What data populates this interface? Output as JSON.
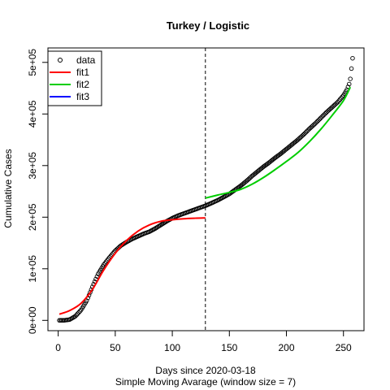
{
  "chart_data": {
    "type": "scatter",
    "title": "Turkey / Logistic",
    "xlabel": "Days since 2020-03-18",
    "xlabel_sub": "Simple Moving Avarage (window size = 7)",
    "ylabel": "Cumulative Cases",
    "xlim": [
      -9,
      268
    ],
    "ylim": [
      -20000,
      528000
    ],
    "x_ticks": [
      0,
      50,
      100,
      150,
      200,
      250
    ],
    "x_tick_labels": [
      "0",
      "50",
      "100",
      "150",
      "200",
      "250"
    ],
    "y_ticks": [
      0,
      100000,
      200000,
      300000,
      400000,
      500000
    ],
    "y_tick_labels": [
      "0e+00",
      "1e+05",
      "2e+05",
      "3e+05",
      "4e+05",
      "5e+05"
    ],
    "vline_x": 129,
    "legend": {
      "position": "top-left",
      "entries": [
        {
          "label": "data",
          "kind": "point",
          "color": "#000000"
        },
        {
          "label": "fit1",
          "kind": "line",
          "color": "#ff0000"
        },
        {
          "label": "fit2",
          "kind": "line",
          "color": "#00cd00"
        },
        {
          "label": "fit3",
          "kind": "line",
          "color": "#0000ff"
        }
      ]
    },
    "data_anchors": {
      "x": [
        1,
        5,
        10,
        15,
        20,
        25,
        30,
        35,
        40,
        45,
        50,
        55,
        60,
        65,
        70,
        75,
        80,
        85,
        90,
        95,
        100,
        105,
        110,
        115,
        120,
        125,
        130,
        135,
        140,
        145,
        150,
        155,
        160,
        165,
        170,
        175,
        180,
        185,
        190,
        195,
        200,
        205,
        210,
        215,
        220,
        225,
        230,
        235,
        240,
        245,
        250,
        253,
        255,
        256,
        257,
        258
      ],
      "y": [
        0,
        0,
        1500,
        8000,
        20000,
        38000,
        65000,
        90000,
        108000,
        122000,
        135000,
        145000,
        152000,
        158000,
        163000,
        168000,
        172000,
        178000,
        185000,
        192000,
        198000,
        203000,
        207000,
        211000,
        215000,
        219000,
        223000,
        228000,
        233000,
        239000,
        245000,
        253000,
        261000,
        270000,
        280000,
        289000,
        298000,
        306000,
        315000,
        323000,
        332000,
        341000,
        350000,
        360000,
        371000,
        381000,
        392000,
        403000,
        413000,
        423000,
        436000,
        447000,
        458000,
        468000,
        488000,
        508000
      ]
    },
    "series": [
      {
        "name": "fit1",
        "color": "#ff0000",
        "x": [
          1,
          10,
          20,
          30,
          40,
          50,
          60,
          70,
          80,
          90,
          100,
          110,
          120,
          129
        ],
        "y": [
          12000,
          19000,
          33000,
          60000,
          98000,
          130000,
          155000,
          173000,
          185000,
          192000,
          195000,
          197000,
          198000,
          198500
        ]
      },
      {
        "name": "fit2",
        "color": "#00cd00",
        "x": [
          129,
          140,
          150,
          160,
          170,
          180,
          190,
          200,
          210,
          220,
          230,
          240,
          250,
          256
        ],
        "y": [
          237000,
          243000,
          248000,
          254000,
          264000,
          277000,
          292000,
          308000,
          325000,
          346000,
          370000,
          397000,
          426000,
          452000
        ]
      }
    ]
  }
}
